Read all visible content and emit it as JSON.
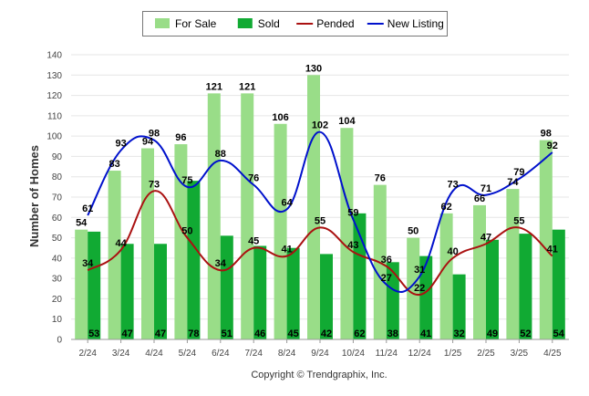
{
  "chart_data": {
    "type": "bar",
    "categories": [
      "2/24",
      "3/24",
      "4/24",
      "5/24",
      "6/24",
      "7/24",
      "8/24",
      "9/24",
      "10/24",
      "11/24",
      "12/24",
      "1/25",
      "2/25",
      "3/25",
      "4/25"
    ],
    "series": [
      {
        "name": "For Sale",
        "kind": "bar",
        "color": "#99dd88",
        "values": [
          54,
          83,
          94,
          96,
          121,
          121,
          106,
          130,
          104,
          76,
          50,
          62,
          66,
          74,
          98
        ]
      },
      {
        "name": "Sold",
        "kind": "bar",
        "color": "#11aa33",
        "values": [
          53,
          47,
          47,
          78,
          51,
          46,
          45,
          42,
          62,
          38,
          41,
          32,
          49,
          52,
          54
        ]
      },
      {
        "name": "Pended",
        "kind": "line",
        "color": "#aa1111",
        "values": [
          34,
          44,
          73,
          50,
          34,
          45,
          41,
          55,
          43,
          36,
          22,
          40,
          47,
          55,
          41
        ]
      },
      {
        "name": "New Listing",
        "kind": "line",
        "color": "#0011cc",
        "values": [
          61,
          93,
          98,
          75,
          88,
          76,
          64,
          102,
          59,
          27,
          31,
          73,
          71,
          79,
          92
        ]
      }
    ],
    "ylabel": "Number of Homes",
    "ylim": [
      0,
      140
    ],
    "yticks": [
      0,
      10,
      20,
      30,
      40,
      50,
      60,
      70,
      80,
      90,
      100,
      110,
      120,
      130,
      140
    ],
    "grid": true,
    "legend": "top-center"
  },
  "copyright": "Copyright © Trendgraphix, Inc."
}
